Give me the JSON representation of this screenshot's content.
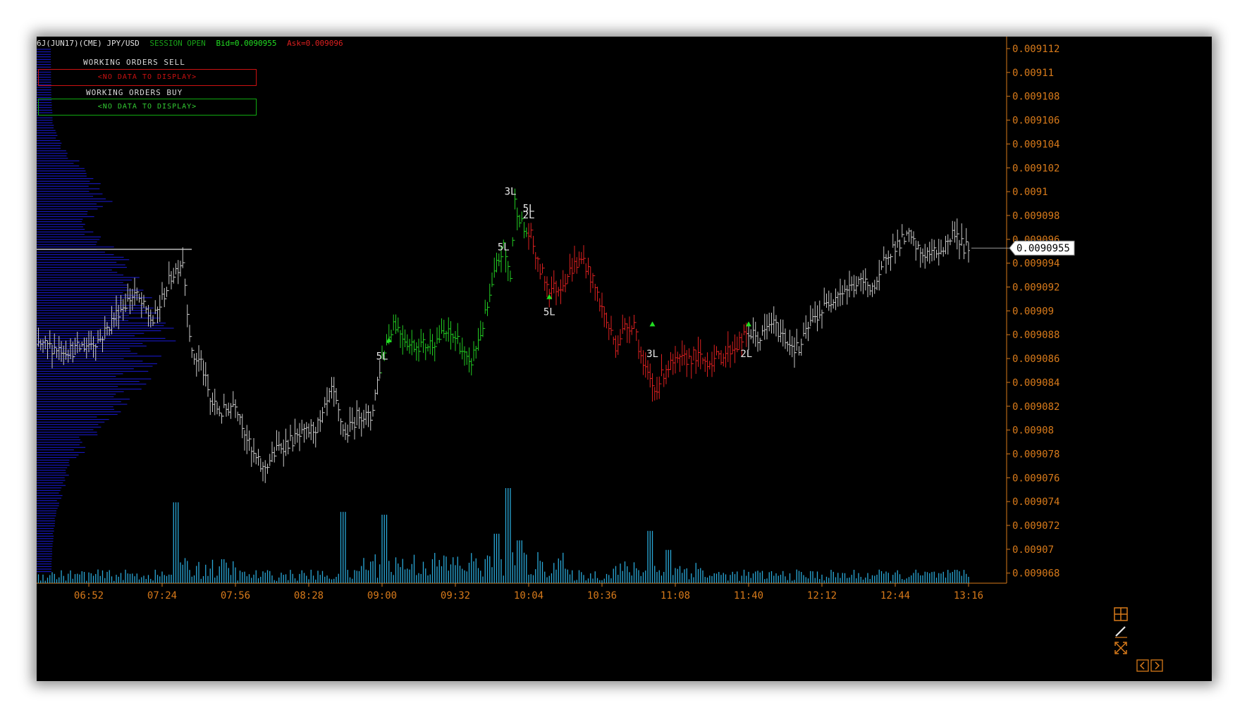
{
  "header": {
    "instrument": "6J(JUN17)(CME) JPY/USD",
    "session": "SESSION OPEN",
    "bid": "Bid=0.0090955",
    "ask": "Ask=0.009096"
  },
  "working_orders": {
    "sell_title": "WORKING ORDERS SELL",
    "sell_empty": "<NO DATA TO DISPLAY>",
    "buy_title": "WORKING ORDERS BUY",
    "buy_empty": "<NO DATA TO DISPLAY>"
  },
  "colors": {
    "background": "#000000",
    "up_leg": "#22cc22",
    "down_leg": "#dd2020",
    "neutral": "#c8c8c8",
    "volume": "#2aa8d8",
    "profile": "#1a1ad8",
    "axis": "#d87a1a",
    "sell_box": "#cc1111",
    "buy_box": "#11aa11"
  },
  "chart_data": {
    "type": "bar",
    "title": "6J(JUN17)(CME) JPY/USD",
    "ylim": [
      0.0090669,
      0.0091131
    ],
    "y_ticks": [
      "0.009112",
      "0.00911",
      "0.009108",
      "0.009106",
      "0.009104",
      "0.009102",
      "0.0091",
      "0.009098",
      "0.009096",
      "0.009094",
      "0.009092",
      "0.00909",
      "0.009088",
      "0.009086",
      "0.009084",
      "0.009082",
      "0.00908",
      "0.009078",
      "0.009076",
      "0.009074",
      "0.009072",
      "0.00907",
      "0.009068"
    ],
    "x_ticks": [
      "06:52",
      "07:24",
      "07:56",
      "08:28",
      "09:00",
      "09:32",
      "10:04",
      "10:36",
      "11:08",
      "11:40",
      "12:12",
      "12:44",
      "13:16"
    ],
    "last_price": "0.0090955",
    "price_path": [
      {
        "t": "06:30",
        "p": 0.009087
      },
      {
        "t": "06:45",
        "p": 0.0090865
      },
      {
        "t": "06:57",
        "p": 0.0090875
      },
      {
        "t": "07:05",
        "p": 0.00909
      },
      {
        "t": "07:12",
        "p": 0.0090915
      },
      {
        "t": "07:20",
        "p": 0.009089
      },
      {
        "t": "07:28",
        "p": 0.009093
      },
      {
        "t": "07:33",
        "p": 0.0090945
      },
      {
        "t": "07:37",
        "p": 0.009086
      },
      {
        "t": "07:41",
        "p": 0.0090855
      },
      {
        "t": "07:45",
        "p": 0.009082
      },
      {
        "t": "07:50",
        "p": 0.009081
      },
      {
        "t": "07:56",
        "p": 0.009082
      },
      {
        "t": "08:00",
        "p": 0.0090795
      },
      {
        "t": "08:03",
        "p": 0.0090775
      },
      {
        "t": "08:08",
        "p": 0.009076
      },
      {
        "t": "08:15",
        "p": 0.009078
      },
      {
        "t": "08:25",
        "p": 0.009079
      },
      {
        "t": "08:33",
        "p": 0.00908
      },
      {
        "t": "08:38",
        "p": 0.009083
      },
      {
        "t": "08:44",
        "p": 0.009079
      },
      {
        "t": "08:50",
        "p": 0.009081
      },
      {
        "t": "08:55",
        "p": 0.0090805
      },
      {
        "t": "09:00",
        "p": 0.009086
      },
      {
        "t": "09:05",
        "p": 0.009089
      },
      {
        "t": "09:12",
        "p": 0.009087
      },
      {
        "t": "09:20",
        "p": 0.009087
      },
      {
        "t": "09:28",
        "p": 0.009088
      },
      {
        "t": "09:33",
        "p": 0.0090875
      },
      {
        "t": "09:38",
        "p": 0.009085
      },
      {
        "t": "09:43",
        "p": 0.009088
      },
      {
        "t": "09:47",
        "p": 0.009091
      },
      {
        "t": "09:50",
        "p": 0.009094
      },
      {
        "t": "09:53",
        "p": 0.0090955
      },
      {
        "t": "09:56",
        "p": 0.009093
      },
      {
        "t": "09:58",
        "p": 0.0090995
      },
      {
        "t": "10:02",
        "p": 0.009097
      },
      {
        "t": "10:05",
        "p": 0.0090965
      },
      {
        "t": "10:08",
        "p": 0.009094
      },
      {
        "t": "10:13",
        "p": 0.009092
      },
      {
        "t": "10:17",
        "p": 0.009092
      },
      {
        "t": "10:24",
        "p": 0.009094
      },
      {
        "t": "10:28",
        "p": 0.0090945
      },
      {
        "t": "10:33",
        "p": 0.009092
      },
      {
        "t": "10:38",
        "p": 0.009089
      },
      {
        "t": "10:42",
        "p": 0.009087
      },
      {
        "t": "10:46",
        "p": 0.0090885
      },
      {
        "t": "10:50",
        "p": 0.009089
      },
      {
        "t": "10:54",
        "p": 0.009085
      },
      {
        "t": "10:59",
        "p": 0.009083
      },
      {
        "t": "11:04",
        "p": 0.009085
      },
      {
        "t": "11:10",
        "p": 0.0090855
      },
      {
        "t": "11:16",
        "p": 0.009086
      },
      {
        "t": "11:22",
        "p": 0.0090855
      },
      {
        "t": "11:28",
        "p": 0.009086
      },
      {
        "t": "11:35",
        "p": 0.009087
      },
      {
        "t": "11:40",
        "p": 0.009088
      },
      {
        "t": "11:45",
        "p": 0.0090875
      },
      {
        "t": "11:50",
        "p": 0.009089
      },
      {
        "t": "11:56",
        "p": 0.0090875
      },
      {
        "t": "12:02",
        "p": 0.0090865
      },
      {
        "t": "12:07",
        "p": 0.009089
      },
      {
        "t": "12:12",
        "p": 0.00909
      },
      {
        "t": "12:18",
        "p": 0.0090915
      },
      {
        "t": "12:24",
        "p": 0.009092
      },
      {
        "t": "12:30",
        "p": 0.0090925
      },
      {
        "t": "12:36",
        "p": 0.009092
      },
      {
        "t": "12:40",
        "p": 0.009095
      },
      {
        "t": "12:46",
        "p": 0.009096
      },
      {
        "t": "12:50",
        "p": 0.0090965
      },
      {
        "t": "12:55",
        "p": 0.009095
      },
      {
        "t": "13:00",
        "p": 0.009095
      },
      {
        "t": "13:05",
        "p": 0.0090955
      },
      {
        "t": "13:10",
        "p": 0.009097
      },
      {
        "t": "13:14",
        "p": 0.0090955
      },
      {
        "t": "13:16",
        "p": 0.0090955
      }
    ],
    "color_segments": [
      {
        "from": "09:00",
        "to": "09:53",
        "color": "up"
      },
      {
        "from": "09:53",
        "to": "10:04",
        "color": "up"
      },
      {
        "from": "10:04",
        "to": "11:40",
        "color": "down"
      }
    ],
    "annotations": [
      {
        "label": "5L",
        "t": "09:00",
        "p": 0.0090857
      },
      {
        "label": "5L",
        "t": "09:53",
        "p": 0.0090953
      },
      {
        "label": "3L",
        "t": "09:56",
        "p": 0.0091002
      },
      {
        "label": "5L",
        "t": "10:04",
        "p": 0.0090987
      },
      {
        "label": "2L",
        "t": "10:04",
        "p": 0.0090981
      },
      {
        "label": "5L",
        "t": "10:13",
        "p": 0.0090896
      },
      {
        "label": "3L",
        "t": "10:58",
        "p": 0.0090859
      },
      {
        "label": "2L",
        "t": "11:39",
        "p": 0.0090859
      }
    ],
    "buy_markers": [
      {
        "t": "09:03",
        "p": 0.0090874
      },
      {
        "t": "10:13",
        "p": 0.0090912
      },
      {
        "t": "10:58",
        "p": 0.0090888
      },
      {
        "t": "11:40",
        "p": 0.0090888
      }
    ],
    "volume_peaks": [
      {
        "t": "07:30",
        "v": 0.85
      },
      {
        "t": "08:43",
        "v": 0.75
      },
      {
        "t": "09:01",
        "v": 0.72
      },
      {
        "t": "09:50",
        "v": 0.52
      },
      {
        "t": "09:55",
        "v": 1.0
      },
      {
        "t": "10:00",
        "v": 0.45
      },
      {
        "t": "10:57",
        "v": 0.55
      },
      {
        "t": "11:05",
        "v": 0.35
      }
    ]
  }
}
